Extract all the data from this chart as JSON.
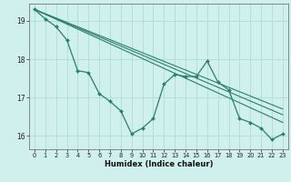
{
  "xlabel": "Humidex (Indice chaleur)",
  "bg_color": "#cff0ec",
  "line_color": "#2d7d6e",
  "grid_color": "#aaddd6",
  "xlim": [
    -0.5,
    23.5
  ],
  "ylim": [
    15.65,
    19.45
  ],
  "yticks": [
    16,
    17,
    18,
    19
  ],
  "xticks": [
    0,
    1,
    2,
    3,
    4,
    5,
    6,
    7,
    8,
    9,
    10,
    11,
    12,
    13,
    14,
    15,
    16,
    17,
    18,
    19,
    20,
    21,
    22,
    23
  ],
  "line1_x": [
    0,
    1,
    2,
    3,
    4,
    5,
    6,
    7,
    8,
    9,
    10,
    11,
    12,
    13,
    14,
    15,
    16,
    17,
    18,
    19,
    20,
    21,
    22,
    23
  ],
  "line1_y": [
    19.3,
    19.05,
    18.85,
    18.5,
    17.7,
    17.65,
    17.1,
    16.9,
    16.65,
    16.05,
    16.2,
    16.45,
    17.35,
    17.6,
    17.55,
    17.55,
    17.95,
    17.4,
    17.2,
    16.45,
    16.35,
    16.2,
    15.9,
    16.05
  ],
  "trend1_x": [
    0,
    23
  ],
  "trend1_y": [
    19.3,
    16.35
  ],
  "trend2_x": [
    0,
    23
  ],
  "trend2_y": [
    19.3,
    16.55
  ],
  "trend3_x": [
    0,
    23
  ],
  "trend3_y": [
    19.3,
    16.7
  ]
}
